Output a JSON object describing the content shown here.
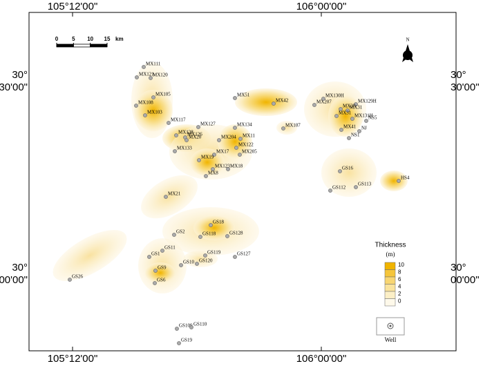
{
  "map": {
    "lon_labels_top": [
      "105°12'00\"",
      "106°00'00\""
    ],
    "lon_labels_bottom": [
      "105°12'00\"",
      "106°00'00\""
    ],
    "lat_labels_left": [
      [
        "30°",
        "30'00\""
      ],
      [
        "30°",
        "00'00\""
      ]
    ],
    "lat_labels_right": [
      [
        "30°",
        "30'00\""
      ],
      [
        "30°",
        "00'00\""
      ]
    ],
    "scale_bar": {
      "ticks": [
        0,
        5,
        10,
        15
      ],
      "unit": "km"
    },
    "north": "N",
    "wells": [
      "MX111",
      "MX121",
      "MX120",
      "MX105",
      "MX108",
      "MX103",
      "MX117",
      "MX127",
      "MX128",
      "MX126",
      "MX20",
      "MX133",
      "MX204",
      "MX134",
      "MX11",
      "MX122",
      "MX205",
      "MX17",
      "MX19",
      "MX123",
      "MX18",
      "MX8",
      "MX21",
      "MX51",
      "MX42",
      "MX107",
      "MX207",
      "MX130H",
      "MX129H",
      "MX30",
      "MX31",
      "MX31",
      "MX131H",
      "NS5",
      "MX41",
      "NJ",
      "NS1",
      "GS16",
      "GS112",
      "GS113",
      "HS4",
      "GS18",
      "GS2",
      "GS118",
      "GS128",
      "GS11",
      "GS1",
      "GS119",
      "GS127",
      "GS10",
      "GS120",
      "GS9",
      "GS6",
      "GS26",
      "GS109",
      "GS110",
      "GS19"
    ],
    "legend": {
      "title": "Thickness",
      "unit": "(m)",
      "levels": [
        10,
        8,
        6,
        4,
        2,
        0
      ],
      "well": "Well"
    }
  }
}
